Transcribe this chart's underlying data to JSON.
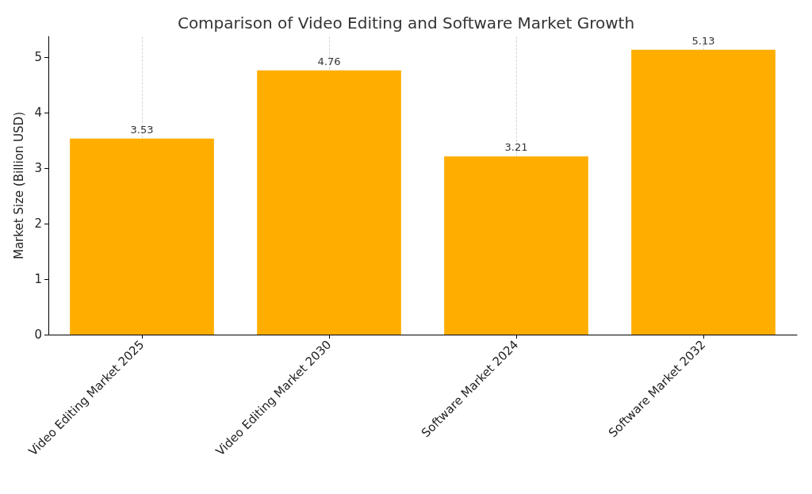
{
  "chart_data": {
    "type": "bar",
    "title": "Comparison of Video Editing and Software Market Growth",
    "ylabel": "Market Size (Billion USD)",
    "categories": [
      "Video Editing Market 2025",
      "Video Editing Market 2030",
      "Software Market 2024",
      "Software Market 2032"
    ],
    "values": [
      3.53,
      4.76,
      3.21,
      5.13
    ],
    "color": "#ffae00",
    "ylim": [
      0,
      5.37
    ],
    "yticks": [
      0,
      1,
      2,
      3,
      4,
      5
    ],
    "grid": "x",
    "data_labels": true
  }
}
